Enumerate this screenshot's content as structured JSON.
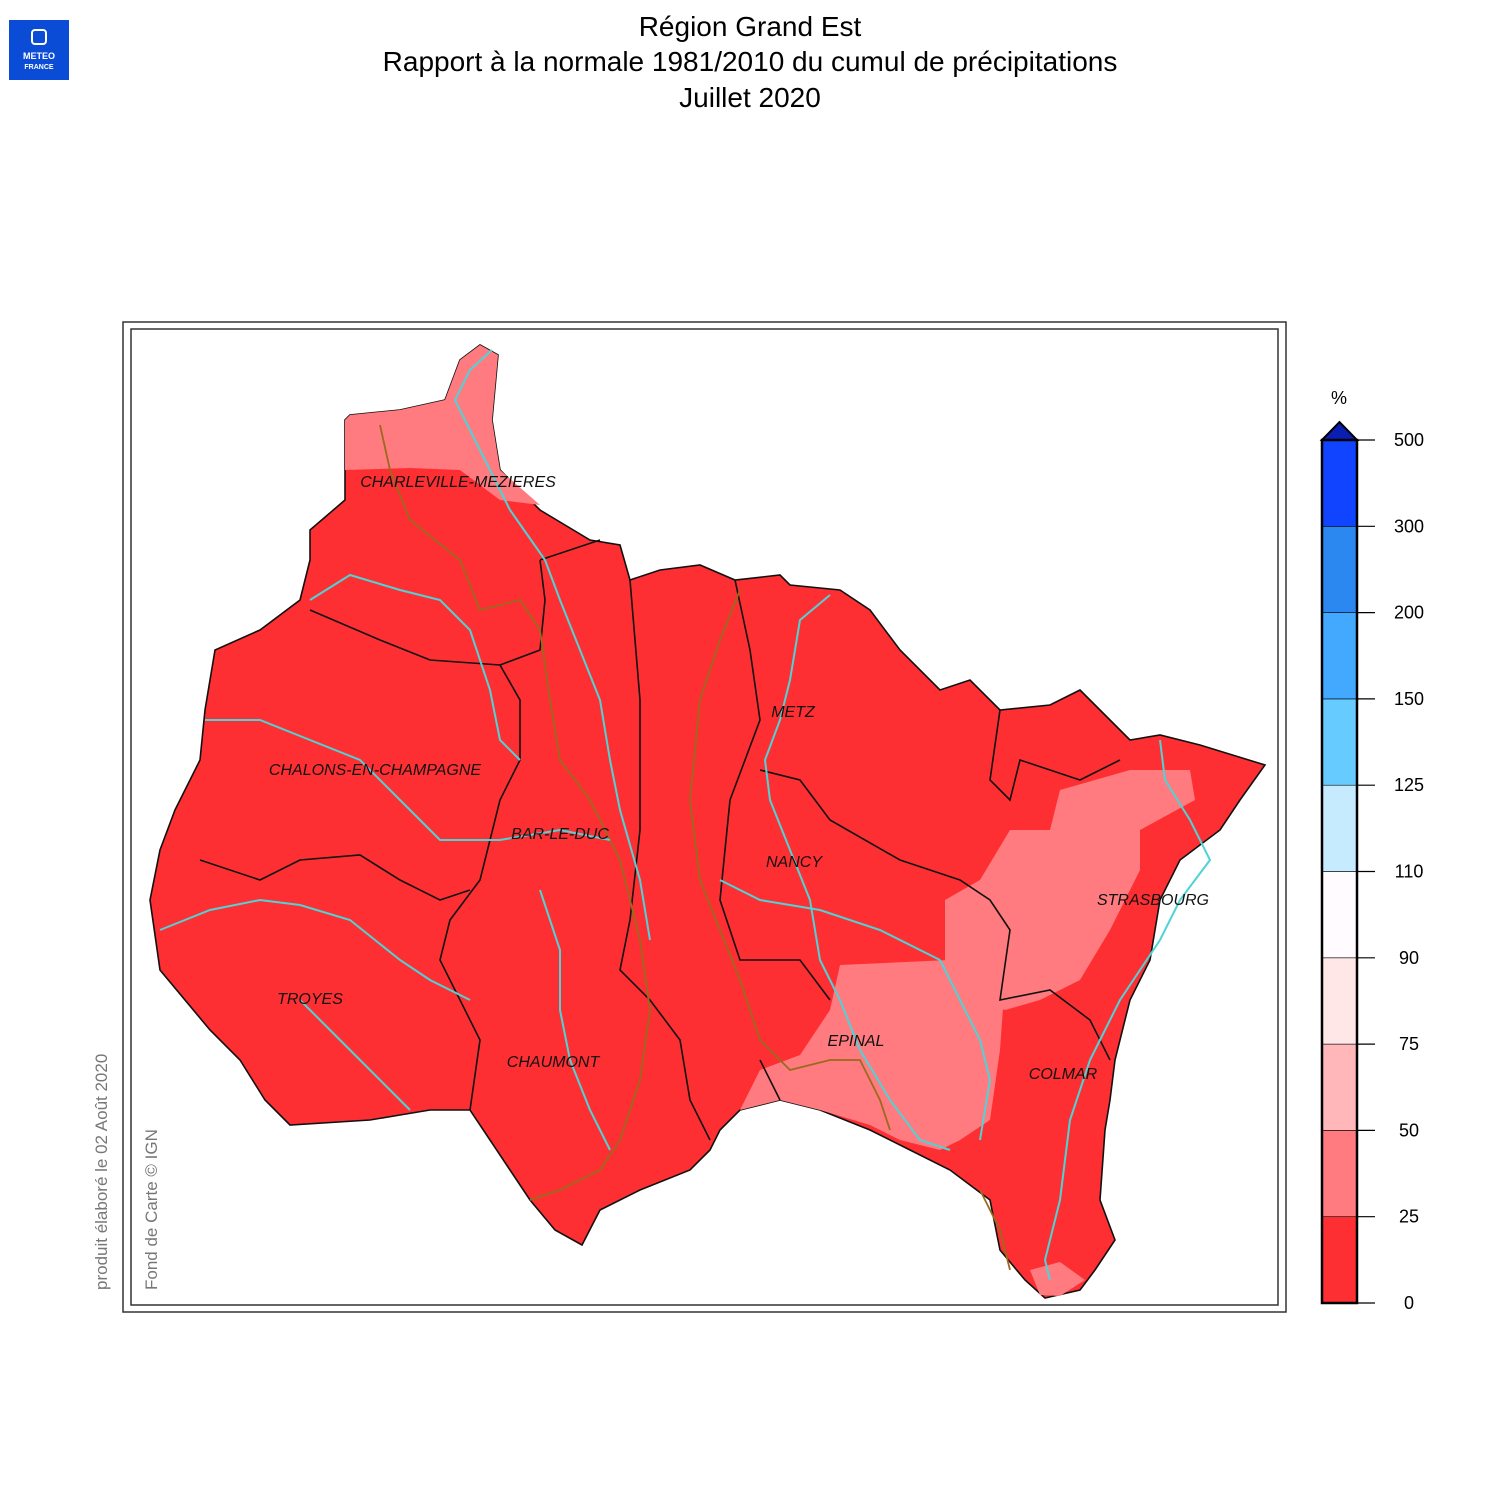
{
  "logo": {
    "line1": "METEO",
    "line2": "FRANCE"
  },
  "header": {
    "title": "Région Grand Est",
    "subtitle": "Rapport à la normale 1981/2010 du cumul de précipitations",
    "period": "Juillet 2020"
  },
  "map": {
    "cities": [
      "CHARLEVILLE-MEZIERES",
      "CHALONS-EN-CHAMPAGNE",
      "BAR-LE-DUC",
      "METZ",
      "NANCY",
      "STRASBOURG",
      "TROYES",
      "CHAUMONT",
      "EPINAL",
      "COLMAR"
    ]
  },
  "legend": {
    "unit": "%",
    "ticks": [
      0,
      25,
      50,
      75,
      90,
      110,
      125,
      150,
      200,
      300,
      500
    ],
    "colors": [
      "#fe2f32",
      "#ff7b7f",
      "#ffb7b9",
      "#ffe7e8",
      "#fffbff",
      "#c6ebff",
      "#66ccff",
      "#42a9ff",
      "#2a88f0",
      "#1144ff"
    ],
    "over_color": "#0a1eb4"
  },
  "credits": {
    "produced": "produit élaboré le 02 Août 2020",
    "basemap": "Fond de Carte © IGN"
  }
}
